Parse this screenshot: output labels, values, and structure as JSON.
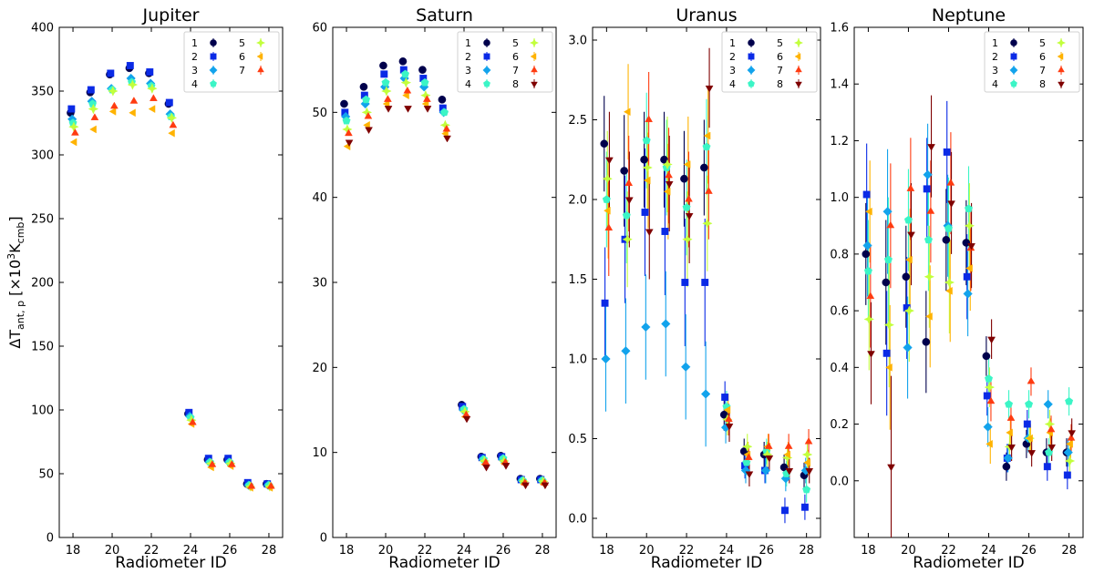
{
  "figure": {
    "ylabel_prefix": "ΔT",
    "ylabel_sub": "ant, p",
    "ylabel_mid": " [×10",
    "ylabel_sup": "3",
    "ylabel_k": "K",
    "ylabel_sub2": "cmb",
    "ylabel_suffix": "]"
  },
  "chart_data": [
    {
      "type": "scatter",
      "title": "Jupiter",
      "xlabel": "Radiometer ID",
      "xlim": [
        17.3,
        28.7
      ],
      "ylim": [
        0,
        400
      ],
      "xticks": [
        18,
        20,
        22,
        24,
        26,
        28
      ],
      "yticks": [
        0,
        50,
        100,
        150,
        200,
        250,
        300,
        350,
        400
      ],
      "x": [
        18,
        19,
        20,
        21,
        22,
        23,
        24,
        25,
        26,
        27,
        28
      ],
      "legend": [
        "1",
        "2",
        "3",
        "4",
        "5",
        "6",
        "7"
      ],
      "series": [
        {
          "name": "1",
          "values": [
            333,
            349,
            363,
            368,
            364,
            340,
            97,
            61,
            61,
            42,
            42
          ],
          "err": [
            0,
            0,
            0,
            0,
            0,
            0,
            0,
            0,
            0,
            0,
            0
          ]
        },
        {
          "name": "2",
          "values": [
            336,
            351,
            364,
            370,
            365,
            341,
            98,
            62,
            62,
            43,
            42
          ],
          "err": [
            0,
            0,
            0,
            0,
            0,
            0,
            0,
            0,
            0,
            0,
            0
          ]
        },
        {
          "name": "3",
          "values": [
            328,
            342,
            352,
            360,
            356,
            332,
            95,
            59,
            59,
            41,
            41
          ],
          "err": [
            0,
            0,
            0,
            0,
            0,
            0,
            0,
            0,
            0,
            0,
            0
          ]
        },
        {
          "name": "4",
          "values": [
            325,
            340,
            351,
            357,
            354,
            330,
            94,
            59,
            59,
            41,
            41
          ],
          "err": [
            0,
            0,
            0,
            0,
            0,
            0,
            0,
            0,
            0,
            0,
            0
          ]
        },
        {
          "name": "5",
          "values": [
            322,
            336,
            350,
            355,
            352,
            329,
            92,
            58,
            58,
            40,
            40
          ],
          "err": [
            0,
            0,
            0,
            0,
            0,
            0,
            0,
            0,
            0,
            0,
            0
          ]
        },
        {
          "name": "6",
          "values": [
            310,
            320,
            334,
            333,
            336,
            317,
            89,
            55,
            56,
            39,
            39
          ],
          "err": [
            0,
            0,
            0,
            0,
            0,
            0,
            0,
            0,
            0,
            0,
            0
          ]
        },
        {
          "name": "7",
          "values": [
            317,
            329,
            338,
            342,
            344,
            323,
            90,
            57,
            57,
            40,
            40
          ],
          "err": [
            0,
            0,
            0,
            0,
            0,
            0,
            0,
            0,
            0,
            0,
            0
          ]
        }
      ]
    },
    {
      "type": "scatter",
      "title": "Saturn",
      "xlabel": "Radiometer ID",
      "xlim": [
        17.3,
        28.7
      ],
      "ylim": [
        0,
        60
      ],
      "xticks": [
        18,
        20,
        22,
        24,
        26,
        28
      ],
      "yticks": [
        0,
        10,
        20,
        30,
        40,
        50,
        60
      ],
      "x": [
        18,
        19,
        20,
        21,
        22,
        23,
        24,
        25,
        26,
        27,
        28
      ],
      "legend": [
        "1",
        "2",
        "3",
        "4",
        "5",
        "6",
        "7",
        "8"
      ],
      "series": [
        {
          "name": "1",
          "values": [
            51.0,
            53.0,
            55.5,
            56.0,
            55.0,
            51.5,
            15.6,
            9.5,
            9.6,
            6.9,
            6.9
          ],
          "err": [
            0,
            0,
            0,
            0,
            0,
            0,
            0,
            0,
            0,
            0,
            0
          ]
        },
        {
          "name": "2",
          "values": [
            50.0,
            52.0,
            54.5,
            55.0,
            54.0,
            50.5,
            15.4,
            9.4,
            9.5,
            6.8,
            6.8
          ],
          "err": [
            0,
            0,
            0,
            0,
            0,
            0,
            0,
            0,
            0,
            0,
            0
          ]
        },
        {
          "name": "3",
          "values": [
            49.5,
            51.0,
            53.0,
            54.0,
            53.0,
            50.0,
            15.0,
            9.2,
            9.2,
            6.7,
            6.7
          ],
          "err": [
            0,
            0,
            0,
            0,
            0,
            0,
            0,
            0,
            0,
            0,
            0
          ]
        },
        {
          "name": "4",
          "values": [
            49.0,
            51.5,
            53.5,
            54.5,
            53.5,
            50.0,
            15.1,
            9.2,
            9.3,
            6.7,
            6.7
          ],
          "err": [
            0,
            0,
            0,
            0,
            0,
            0,
            0,
            0,
            0,
            0,
            0
          ]
        },
        {
          "name": "5",
          "values": [
            48.0,
            50.0,
            52.5,
            53.5,
            52.0,
            48.5,
            14.8,
            9.0,
            9.0,
            6.6,
            6.6
          ],
          "err": [
            0,
            0,
            0,
            0,
            0,
            0,
            0,
            0,
            0,
            0,
            0
          ]
        },
        {
          "name": "6",
          "values": [
            46.0,
            48.5,
            51.0,
            52.0,
            51.0,
            47.5,
            14.2,
            8.6,
            8.7,
            6.3,
            6.3
          ],
          "err": [
            0,
            0,
            0,
            0,
            0,
            0,
            0,
            0,
            0,
            0,
            0
          ]
        },
        {
          "name": "7",
          "values": [
            47.5,
            49.5,
            51.5,
            52.5,
            51.5,
            48.0,
            14.4,
            8.8,
            8.8,
            6.4,
            6.4
          ],
          "err": [
            0,
            0,
            0,
            0,
            0,
            0,
            0,
            0,
            0,
            0,
            0
          ]
        },
        {
          "name": "8",
          "values": [
            46.5,
            48.0,
            50.5,
            50.5,
            50.5,
            47.0,
            14.0,
            8.3,
            8.5,
            6.2,
            6.2
          ],
          "err": [
            0,
            0,
            0,
            0,
            0,
            0,
            0,
            0,
            0,
            0,
            0
          ]
        }
      ]
    },
    {
      "type": "scatter",
      "title": "Uranus",
      "xlabel": "Radiometer ID",
      "xlim": [
        17.3,
        28.7
      ],
      "ylim": [
        -0.12,
        3.08
      ],
      "xticks": [
        18,
        20,
        22,
        24,
        26,
        28
      ],
      "yticks": [
        0.0,
        0.5,
        1.0,
        1.5,
        2.0,
        2.5,
        3.0
      ],
      "ytick_labels": [
        "0.0",
        "0.5",
        "1.0",
        "1.5",
        "2.0",
        "2.5",
        "3.0"
      ],
      "x": [
        18,
        19,
        20,
        21,
        22,
        23,
        24,
        25,
        26,
        27,
        28
      ],
      "legend": [
        "1",
        "2",
        "3",
        "4",
        "5",
        "6",
        "7",
        "8"
      ],
      "series": [
        {
          "name": "1",
          "values": [
            2.35,
            2.18,
            2.25,
            2.25,
            2.13,
            2.2,
            0.65,
            0.42,
            0.4,
            0.32,
            0.27
          ],
          "err": [
            0.3,
            0.35,
            0.3,
            0.3,
            0.3,
            0.3,
            0.1,
            0.08,
            0.08,
            0.08,
            0.08
          ]
        },
        {
          "name": "2",
          "values": [
            1.35,
            1.75,
            1.92,
            1.8,
            1.48,
            1.48,
            0.76,
            0.33,
            0.3,
            0.05,
            0.07
          ],
          "err": [
            0.35,
            0.4,
            0.4,
            0.4,
            0.4,
            0.4,
            0.1,
            0.08,
            0.08,
            0.08,
            0.08
          ]
        },
        {
          "name": "3",
          "values": [
            1.0,
            1.05,
            1.2,
            1.22,
            0.95,
            0.78,
            0.57,
            0.3,
            0.3,
            0.25,
            0.3
          ],
          "err": [
            0.33,
            0.33,
            0.33,
            0.33,
            0.33,
            0.33,
            0.1,
            0.08,
            0.08,
            0.08,
            0.08
          ]
        },
        {
          "name": "4",
          "values": [
            2.0,
            1.9,
            2.37,
            2.2,
            1.95,
            2.33,
            0.7,
            0.35,
            0.42,
            0.28,
            0.18
          ],
          "err": [
            0.3,
            0.3,
            0.3,
            0.3,
            0.3,
            0.3,
            0.1,
            0.08,
            0.08,
            0.08,
            0.08
          ]
        },
        {
          "name": "5",
          "values": [
            2.13,
            1.75,
            2.2,
            2.22,
            1.75,
            1.85,
            0.62,
            0.45,
            0.4,
            0.38,
            0.4
          ],
          "err": [
            0.3,
            0.3,
            0.3,
            0.3,
            0.3,
            0.3,
            0.1,
            0.08,
            0.08,
            0.08,
            0.08
          ]
        },
        {
          "name": "6",
          "values": [
            1.93,
            2.55,
            2.12,
            2.05,
            2.22,
            2.4,
            0.68,
            0.4,
            0.45,
            0.4,
            0.35
          ],
          "err": [
            0.3,
            0.3,
            0.3,
            0.3,
            0.3,
            0.3,
            0.1,
            0.08,
            0.08,
            0.08,
            0.08
          ]
        },
        {
          "name": "7",
          "values": [
            1.82,
            2.1,
            2.5,
            2.15,
            2.0,
            2.05,
            0.62,
            0.38,
            0.45,
            0.45,
            0.48
          ],
          "err": [
            0.3,
            0.3,
            0.3,
            0.3,
            0.3,
            0.3,
            0.1,
            0.08,
            0.08,
            0.08,
            0.08
          ]
        },
        {
          "name": "8",
          "values": [
            2.25,
            2.0,
            1.8,
            2.1,
            1.9,
            2.7,
            0.58,
            0.28,
            0.38,
            0.3,
            0.3
          ],
          "err": [
            0.3,
            0.3,
            0.3,
            0.3,
            0.3,
            0.25,
            0.1,
            0.08,
            0.08,
            0.08,
            0.08
          ]
        }
      ]
    },
    {
      "type": "scatter",
      "title": "Neptune",
      "xlabel": "Radiometer ID",
      "xlim": [
        17.3,
        28.7
      ],
      "ylim": [
        -0.2,
        1.6
      ],
      "xticks": [
        18,
        20,
        22,
        24,
        26,
        28
      ],
      "yticks": [
        0.0,
        0.2,
        0.4,
        0.6,
        0.8,
        1.0,
        1.2,
        1.4,
        1.6
      ],
      "ytick_labels": [
        "0.0",
        "0.2",
        "0.4",
        "0.6",
        "0.8",
        "1.0",
        "1.2",
        "1.4",
        "1.6"
      ],
      "x": [
        18,
        19,
        20,
        21,
        22,
        23,
        24,
        25,
        26,
        27,
        28
      ],
      "legend": [
        "1",
        "2",
        "3",
        "4",
        "5",
        "6",
        "7",
        "8"
      ],
      "series": [
        {
          "name": "1",
          "values": [
            0.8,
            0.7,
            0.72,
            0.49,
            0.85,
            0.84,
            0.44,
            0.05,
            0.13,
            0.1,
            0.1
          ],
          "err": [
            0.18,
            0.22,
            0.18,
            0.18,
            0.18,
            0.15,
            0.07,
            0.05,
            0.05,
            0.05,
            0.05
          ]
        },
        {
          "name": "2",
          "values": [
            1.01,
            0.45,
            0.61,
            1.03,
            1.16,
            0.72,
            0.3,
            0.08,
            0.2,
            0.05,
            0.02
          ],
          "err": [
            0.18,
            0.22,
            0.18,
            0.18,
            0.18,
            0.15,
            0.07,
            0.05,
            0.05,
            0.05,
            0.05
          ]
        },
        {
          "name": "3",
          "values": [
            0.83,
            0.95,
            0.47,
            1.08,
            0.9,
            0.66,
            0.19,
            0.08,
            0.15,
            0.27,
            0.1
          ],
          "err": [
            0.18,
            0.22,
            0.18,
            0.18,
            0.18,
            0.15,
            0.07,
            0.05,
            0.05,
            0.05,
            0.05
          ]
        },
        {
          "name": "4",
          "values": [
            0.74,
            0.78,
            0.92,
            0.85,
            0.89,
            0.96,
            0.36,
            0.27,
            0.27,
            0.1,
            0.28
          ],
          "err": [
            0.18,
            0.22,
            0.18,
            0.18,
            0.18,
            0.15,
            0.07,
            0.05,
            0.05,
            0.05,
            0.05
          ]
        },
        {
          "name": "5",
          "values": [
            0.57,
            0.55,
            0.6,
            0.72,
            0.7,
            0.9,
            0.33,
            0.12,
            0.15,
            0.2,
            0.07
          ],
          "err": [
            0.18,
            0.22,
            0.18,
            0.18,
            0.18,
            0.15,
            0.07,
            0.05,
            0.05,
            0.05,
            0.05
          ]
        },
        {
          "name": "6",
          "values": [
            0.95,
            0.4,
            0.78,
            0.58,
            0.67,
            0.75,
            0.13,
            0.17,
            0.15,
            0.17,
            0.13
          ],
          "err": [
            0.18,
            0.22,
            0.18,
            0.18,
            0.18,
            0.15,
            0.07,
            0.05,
            0.05,
            0.05,
            0.05
          ]
        },
        {
          "name": "7",
          "values": [
            0.65,
            0.9,
            1.03,
            0.95,
            1.05,
            0.82,
            0.28,
            0.22,
            0.35,
            0.18,
            0.15
          ],
          "err": [
            0.18,
            0.22,
            0.18,
            0.18,
            0.18,
            0.15,
            0.07,
            0.05,
            0.05,
            0.05,
            0.05
          ]
        },
        {
          "name": "8",
          "values": [
            0.45,
            0.05,
            0.87,
            1.18,
            0.98,
            0.83,
            0.5,
            0.12,
            0.1,
            0.12,
            0.17
          ],
          "err": [
            0.18,
            0.32,
            0.18,
            0.18,
            0.18,
            0.15,
            0.07,
            0.05,
            0.05,
            0.05,
            0.05
          ]
        }
      ]
    }
  ],
  "series_colors": [
    "#00004c",
    "#0a2ae6",
    "#12a3ec",
    "#3bf5c6",
    "#c2ff3c",
    "#ffb300",
    "#ff3b10",
    "#7f0000"
  ],
  "series_markers": [
    "circle",
    "square",
    "diamond",
    "pentagon",
    "star",
    "tri-left",
    "tri-up",
    "tri-down"
  ]
}
